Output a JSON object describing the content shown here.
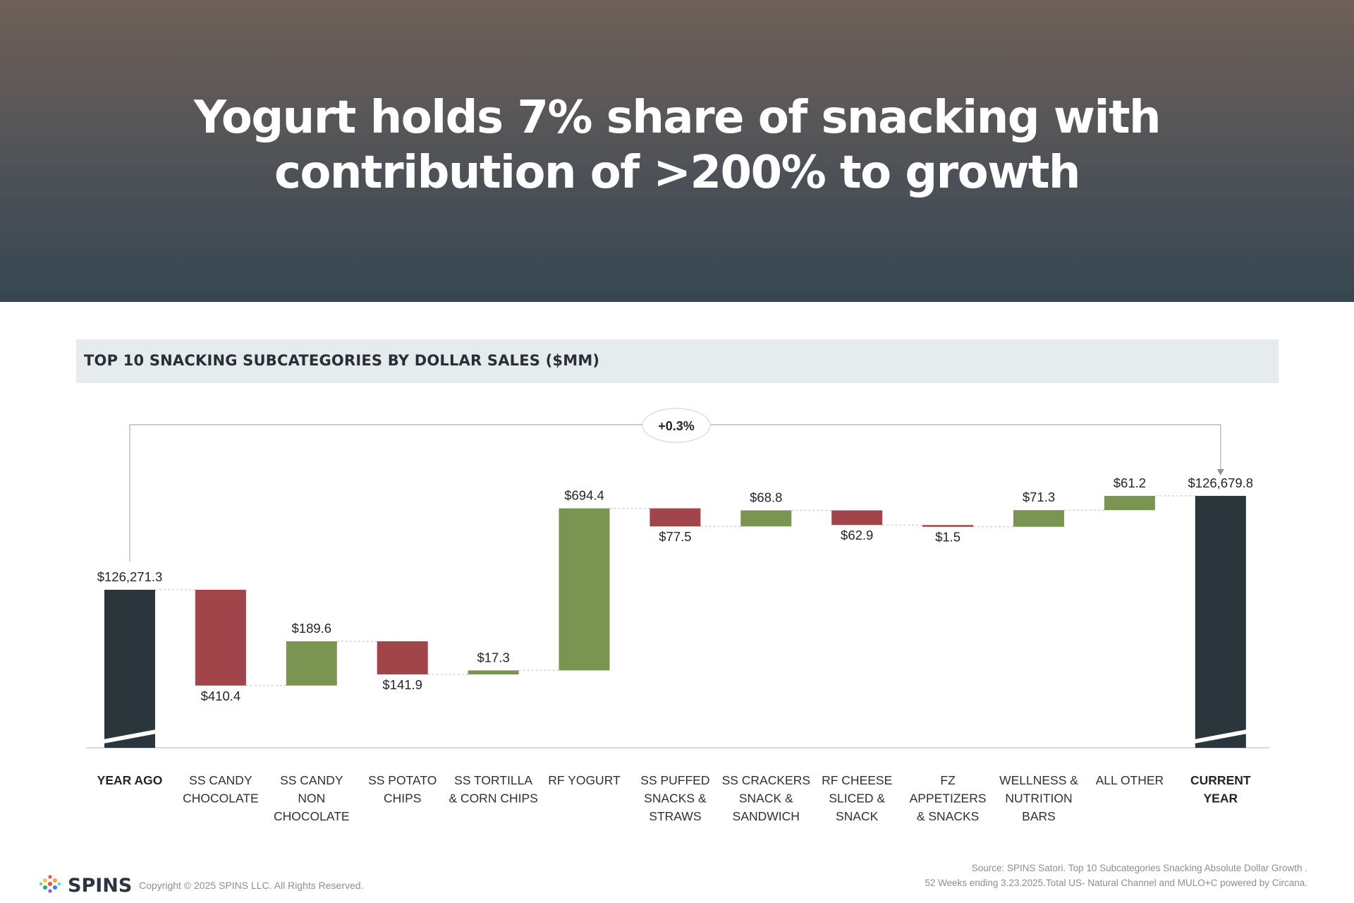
{
  "header": {
    "title_line1": "Yogurt holds 7% share of snacking with",
    "title_line2": "contribution of >200% to growth"
  },
  "chart_band": {
    "title": "TOP 10 SNACKING SUBCATEGORIES BY DOLLAR SALES ($MM)"
  },
  "chart_data": {
    "type": "bar",
    "subtype": "waterfall",
    "axis_break": true,
    "categories": [
      [
        "YEAR AGO"
      ],
      [
        "SS CANDY",
        "CHOCOLATE"
      ],
      [
        "SS CANDY",
        "NON",
        "CHOCOLATE"
      ],
      [
        "SS POTATO",
        "CHIPS"
      ],
      [
        "SS TORTILLA",
        "& CORN CHIPS"
      ],
      [
        "RF YOGURT"
      ],
      [
        "SS PUFFED",
        "SNACKS &",
        "STRAWS"
      ],
      [
        "SS CRACKERS",
        "SNACK &",
        "SANDWICH"
      ],
      [
        "RF CHEESE",
        "SLICED &",
        "SNACK"
      ],
      [
        "FZ",
        "APPETIZERS",
        "& SNACKS"
      ],
      [
        "WELLNESS &",
        "NUTRITION",
        "BARS"
      ],
      [
        "ALL OTHER"
      ],
      [
        "CURRENT",
        "YEAR"
      ]
    ],
    "kinds": [
      "total",
      "delta",
      "delta",
      "delta",
      "delta",
      "delta",
      "delta",
      "delta",
      "delta",
      "delta",
      "delta",
      "delta",
      "total"
    ],
    "values": [
      126271.3,
      -410.4,
      189.6,
      -141.9,
      17.3,
      694.4,
      -77.5,
      68.8,
      -62.9,
      -1.5,
      71.3,
      61.2,
      126679.8
    ],
    "value_labels": [
      "$126,271.3",
      "$410.4",
      "$189.6",
      "$141.9",
      "$17.3",
      "$694.4",
      "$77.5",
      "$68.8",
      "$62.9",
      "$1.5",
      "$71.3",
      "$61.2",
      "$126,679.8"
    ],
    "change_label": "+0.3%",
    "colors": {
      "total": "#2a353c",
      "increase": "#7a9551",
      "decrease": "#a2454a"
    }
  },
  "footer": {
    "logo_text": "SPINS",
    "copyright": "Copyright © 2025 SPINS LLC. All Rights Reserved.",
    "source_line1": "Source: SPINS Satori. Top 10 Subcategories Snacking Absolute Dollar Growth .",
    "source_line2": "52 Weeks ending 3.23.2025.Total US- Natural Channel and MULO+C powered by Circana."
  }
}
